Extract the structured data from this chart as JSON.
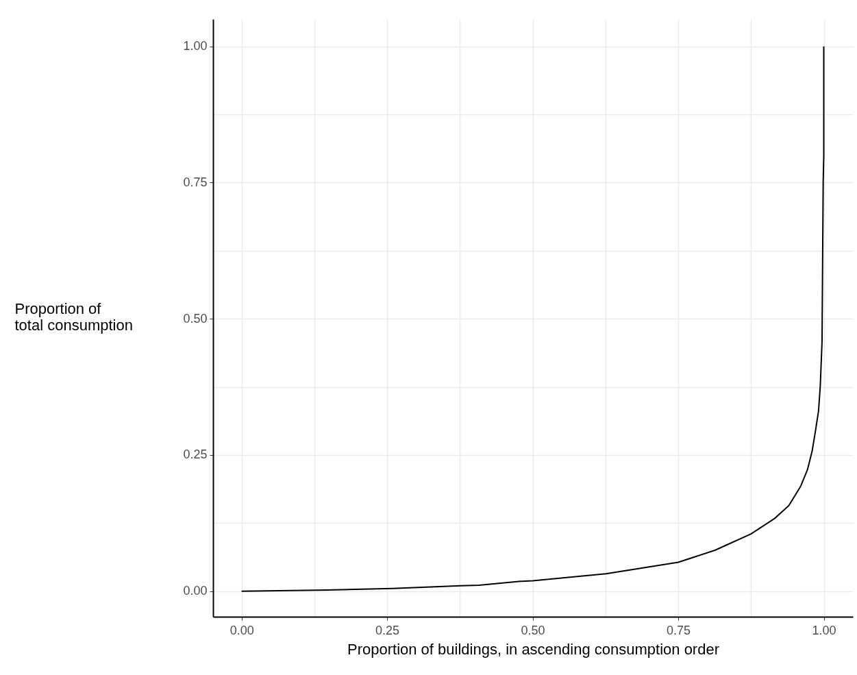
{
  "chart_data": {
    "type": "line",
    "xlabel": "Proportion of buildings, in ascending consumption order",
    "ylabel": "Proportion of\ntotal consumption",
    "x": [
      0,
      0.147,
      0.259,
      0.376,
      0.408,
      0.479,
      0.5,
      0.626,
      0.75,
      0.813,
      0.875,
      0.915,
      0.94,
      0.96,
      0.972,
      0.98,
      0.986,
      0.991,
      0.994,
      0.997,
      0.999,
      1.0,
      1.0
    ],
    "series": [
      {
        "color": "#000000",
        "values": [
          0,
          0.002,
          0.005,
          0.01,
          0.011,
          0.018,
          0.019,
          0.032,
          0.053,
          0.075,
          0.105,
          0.133,
          0.157,
          0.192,
          0.223,
          0.257,
          0.296,
          0.331,
          0.377,
          0.458,
          0.752,
          0.8,
          1.0
        ]
      }
    ],
    "xlim": [
      -0.049,
      1.05
    ],
    "ylim": [
      -0.047,
      1.05
    ],
    "xticks": [
      {
        "value": 0,
        "label": "0.00"
      },
      {
        "value": 0.125,
        "label": null
      },
      {
        "value": 0.25,
        "label": "0.25"
      },
      {
        "value": 0.375,
        "label": null
      },
      {
        "value": 0.5,
        "label": "0.50"
      },
      {
        "value": 0.625,
        "label": null
      },
      {
        "value": 0.75,
        "label": "0.75"
      },
      {
        "value": 0.875,
        "label": null
      },
      {
        "value": 1,
        "label": "1.00"
      }
    ],
    "yticks": [
      {
        "value": 0,
        "label": "0.00"
      },
      {
        "value": 0.125,
        "label": null
      },
      {
        "value": 0.25,
        "label": "0.25"
      },
      {
        "value": 0.375,
        "label": null
      },
      {
        "value": 0.5,
        "label": "0.50"
      },
      {
        "value": 0.625,
        "label": null
      },
      {
        "value": 0.75,
        "label": "0.75"
      },
      {
        "value": 0.875,
        "label": null
      },
      {
        "value": 1,
        "label": "1.00"
      }
    ],
    "grid": true,
    "line_style": "solid",
    "marker": "none"
  }
}
